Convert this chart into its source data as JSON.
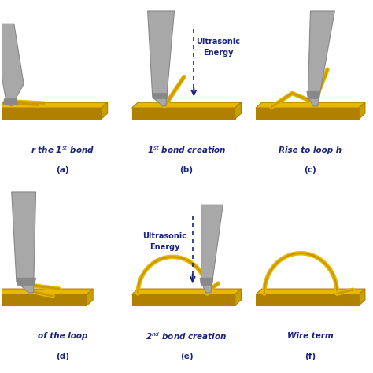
{
  "panels": [
    {
      "id": "a",
      "label_main": "r the 1$^{st}$ bond",
      "label_sub": "(a)"
    },
    {
      "id": "b",
      "label_main": "1$^{st}$ bond creation",
      "label_sub": "(b)"
    },
    {
      "id": "c",
      "label_main": "Rise to loop h",
      "label_sub": "(c)"
    },
    {
      "id": "d",
      "label_main": "of the loop",
      "label_sub": "(d)"
    },
    {
      "id": "e",
      "label_main": "2$^{nd}$ bond creation",
      "label_sub": "(e)"
    },
    {
      "id": "f",
      "label_main": "Wire term",
      "label_sub": "(f)"
    }
  ],
  "colors": {
    "substrate_yellow": "#e8b800",
    "substrate_dark": "#b08000",
    "substrate_side": "#c8a000",
    "tool_gray": "#a8a8a8",
    "tool_dark": "#888888",
    "wire_yellow": "#e8b800",
    "wire_outline": "#b08000",
    "text_color": "#1a237e",
    "grid_line": "#888888",
    "arrow_color": "#1a237e",
    "bg": "#ffffff"
  }
}
